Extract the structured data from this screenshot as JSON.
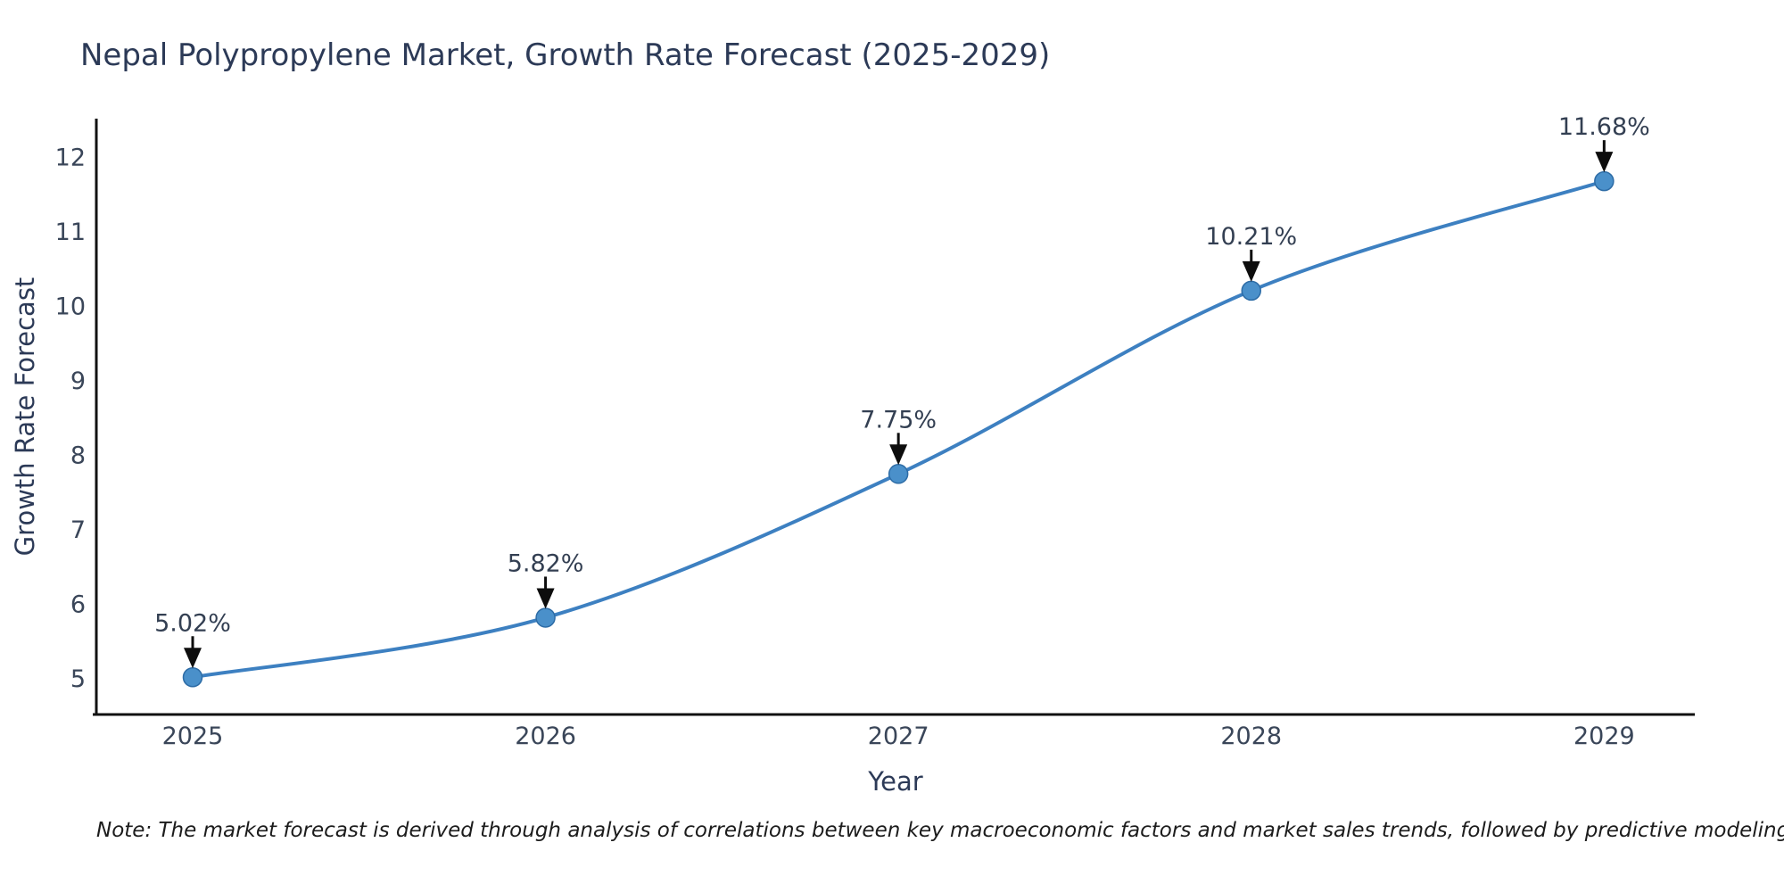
{
  "title": "Nepal Polypropylene Market, Growth Rate Forecast (2025-2029)",
  "note": "Note: The market forecast is derived through analysis of correlations between key macroeconomic factors and market sales trends, followed by predictive modeling to project future sales",
  "chart_data": {
    "type": "line",
    "title": "Nepal Polypropylene Market, Growth Rate Forecast (2025-2029)",
    "xlabel": "Year",
    "ylabel": "Growth Rate Forecast",
    "x": [
      2025,
      2026,
      2027,
      2028,
      2029
    ],
    "values": [
      5.02,
      5.82,
      7.75,
      10.21,
      11.68
    ],
    "point_labels": [
      "5.02%",
      "5.82%",
      "7.75%",
      "10.21%",
      "11.68%"
    ],
    "xticks": [
      "2025",
      "2026",
      "2027",
      "2028",
      "2029"
    ],
    "yticks": [
      5,
      6,
      7,
      8,
      9,
      10,
      11,
      12
    ],
    "xlim": [
      2024.727,
      2029.257
    ],
    "ylim": [
      4.52,
      12.52
    ],
    "grid": false,
    "legend": null,
    "smooth_spline": true,
    "colors": {
      "line": "#3d80c1",
      "marker_fill": "#4a90ca",
      "marker_edge": "#2d6ca6",
      "spine": "#111111",
      "axis_text": "#3a4659",
      "annotation_text": "#333f52",
      "arrow": "#0d0d0d",
      "title_text": "#2c3a57",
      "background": "#ffffff"
    }
  }
}
